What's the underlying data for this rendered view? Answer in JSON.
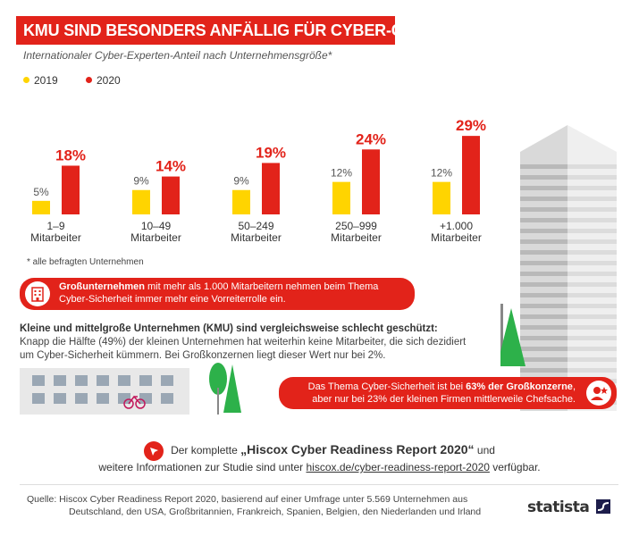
{
  "title": "KMU SIND BESONDERS ANFÄLLIG FÜR CYBER-GEFAHREN",
  "subtitle": "Internationaler Cyber-Experten-Anteil nach Unternehmensgröße*",
  "colors": {
    "y2019": "#ffd400",
    "y2020": "#e2231a",
    "accent": "#e2231a"
  },
  "chart_data": {
    "type": "bar",
    "categories": [
      [
        "1–9",
        "Mitarbeiter"
      ],
      [
        "10–49",
        "Mitarbeiter"
      ],
      [
        "50–249",
        "Mitarbeiter"
      ],
      [
        "250–999",
        "Mitarbeiter"
      ],
      [
        "+1.000",
        "Mitarbeiter"
      ]
    ],
    "series": [
      {
        "name": "2019",
        "values": [
          5,
          9,
          9,
          12,
          12
        ],
        "labels": [
          "5%",
          "9%",
          "9%",
          "12%",
          "12%"
        ]
      },
      {
        "name": "2020",
        "values": [
          18,
          14,
          19,
          24,
          29
        ],
        "labels": [
          "18%",
          "14%",
          "19%",
          "24%",
          "29%"
        ]
      }
    ],
    "unit": "%",
    "ylim": [
      0,
      30
    ],
    "grid": false,
    "legend": "top-left"
  },
  "footnote": "* alle befragten Unternehmen",
  "banner1": {
    "bold": "Großunternehmen",
    "rest": " mit mehr als 1.000 Mitarbeitern nehmen beim Thema Cyber-Sicherheit immer mehr eine Vorreiterrolle ein.",
    "icon": "building-icon"
  },
  "kmu": {
    "heading": "Kleine und mittelgroße Unternehmen (KMU) sind vergleichsweise schlecht geschützt:",
    "text": "Knapp die Hälfte (49%) der kleinen Unternehmen hat weiterhin keine Mitarbeiter, die sich dezidiert um Cyber-Sicherheit kümmern. Bei Großkonzernen liegt dieser Wert nur bei 2%."
  },
  "banner2": {
    "pre": "Das Thema Cyber-Sicherheit ist bei ",
    "bold": "63% der Großkonzerne",
    "post": ",",
    "line2": "aber nur bei 23% der kleinen Firmen mittlerweile Chefsache.",
    "icon": "manager-icon"
  },
  "report": {
    "pre": "Der komplette ",
    "title": "„Hiscox Cyber Readiness Report 2020“",
    "post": " und",
    "line2_pre": "weitere Informationen zur Studie sind unter ",
    "url": "hiscox.de/cyber-readiness-report-2020",
    "line2_post": " verfügbar.",
    "icon": "pointer-icon"
  },
  "source": {
    "line1": "Quelle: Hiscox Cyber Readiness Report 2020, basierend auf einer Umfrage unter 5.569 Unternehmen aus",
    "line2": "Deutschland, den USA, Großbritannien, Frankreich, Spanien, Belgien, den Niederlanden und Irland"
  },
  "brand": "statista"
}
